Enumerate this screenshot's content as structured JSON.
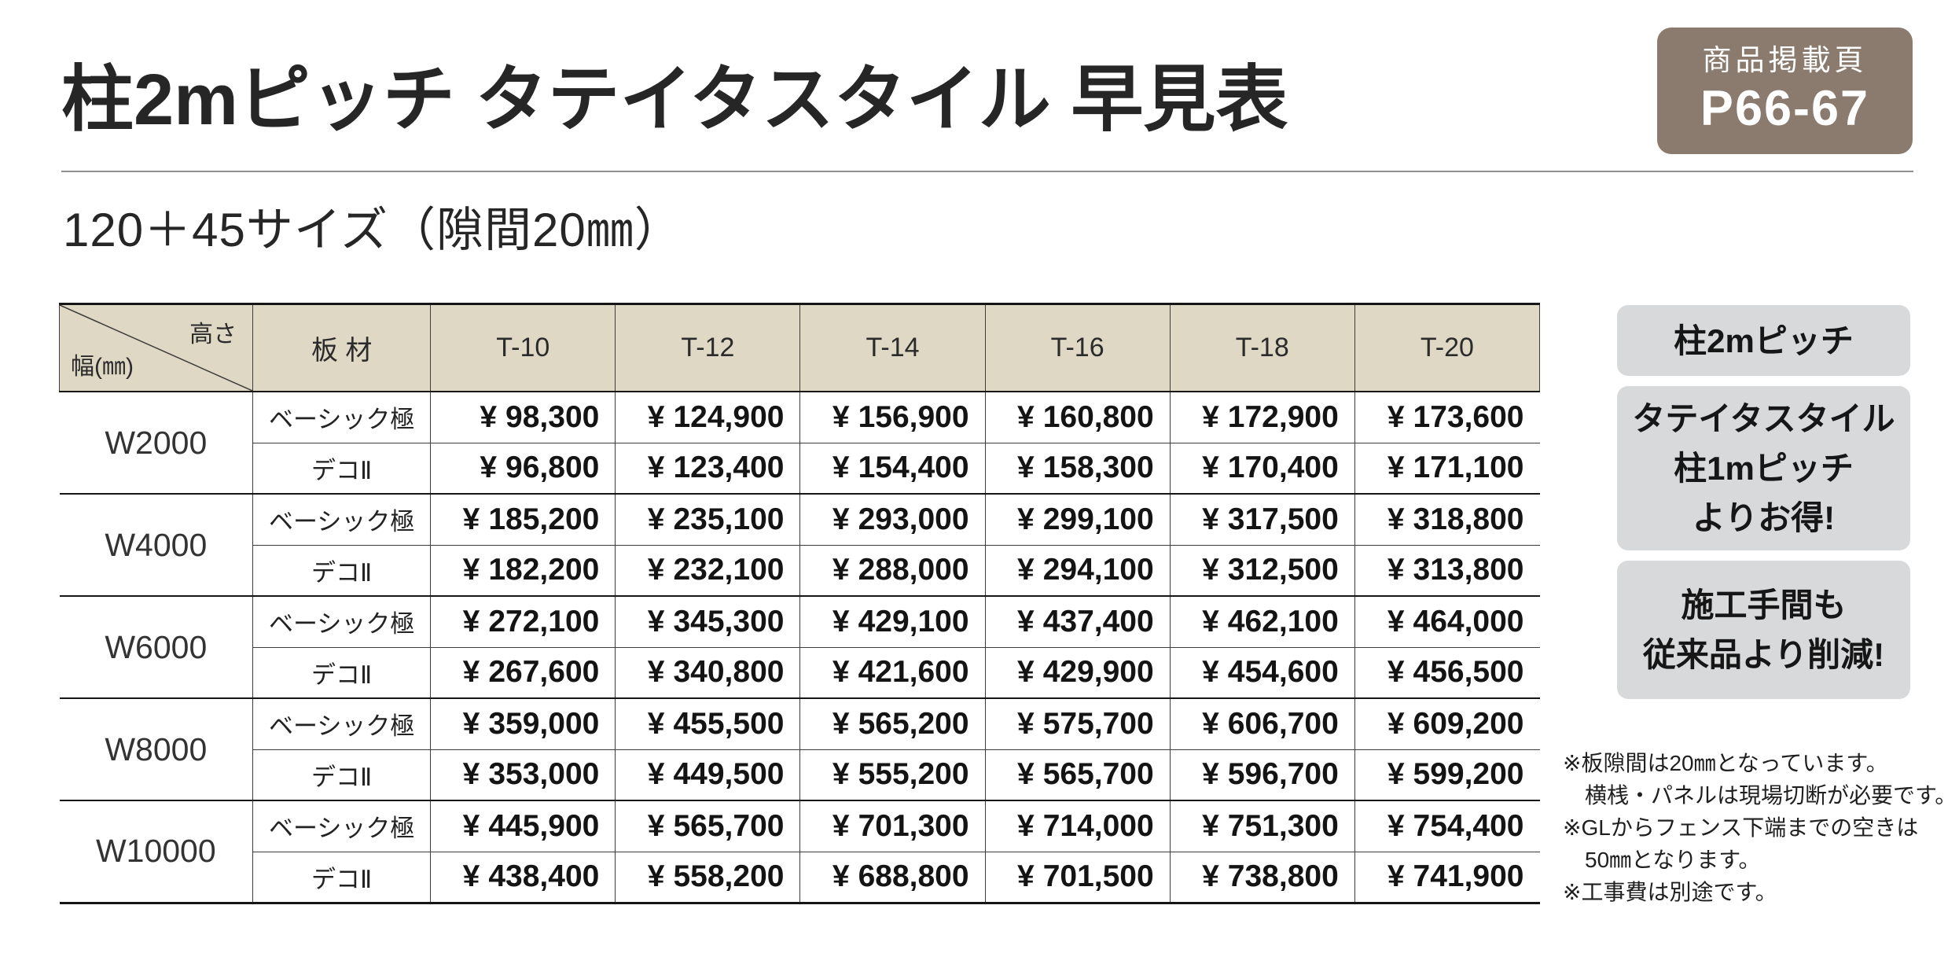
{
  "page": {
    "title": "柱2mピッチ タテイタスタイル 早見表",
    "subtitle": "120＋45サイズ（隙間20㎜）"
  },
  "page_badge": {
    "label": "商品掲載頁",
    "pages": "P66-67"
  },
  "table": {
    "corner": {
      "height_label": "高さ",
      "width_label": "幅(㎜)"
    },
    "material_header": "板 材",
    "height_columns": [
      "T-10",
      "T-12",
      "T-14",
      "T-16",
      "T-18",
      "T-20"
    ],
    "currency_symbol": "¥",
    "groups": [
      {
        "width": "W2000",
        "rows": [
          {
            "material": "ベーシック極",
            "amounts": [
              "98,300",
              "124,900",
              "156,900",
              "160,800",
              "172,900",
              "173,600"
            ]
          },
          {
            "material": "デコⅡ",
            "amounts": [
              "96,800",
              "123,400",
              "154,400",
              "158,300",
              "170,400",
              "171,100"
            ]
          }
        ]
      },
      {
        "width": "W4000",
        "rows": [
          {
            "material": "ベーシック極",
            "amounts": [
              "185,200",
              "235,100",
              "293,000",
              "299,100",
              "317,500",
              "318,800"
            ]
          },
          {
            "material": "デコⅡ",
            "amounts": [
              "182,200",
              "232,100",
              "288,000",
              "294,100",
              "312,500",
              "313,800"
            ]
          }
        ]
      },
      {
        "width": "W6000",
        "rows": [
          {
            "material": "ベーシック極",
            "amounts": [
              "272,100",
              "345,300",
              "429,100",
              "437,400",
              "462,100",
              "464,000"
            ]
          },
          {
            "material": "デコⅡ",
            "amounts": [
              "267,600",
              "340,800",
              "421,600",
              "429,900",
              "454,600",
              "456,500"
            ]
          }
        ]
      },
      {
        "width": "W8000",
        "rows": [
          {
            "material": "ベーシック極",
            "amounts": [
              "359,000",
              "455,500",
              "565,200",
              "575,700",
              "606,700",
              "609,200"
            ]
          },
          {
            "material": "デコⅡ",
            "amounts": [
              "353,000",
              "449,500",
              "555,200",
              "565,700",
              "596,700",
              "599,200"
            ]
          }
        ]
      },
      {
        "width": "W10000",
        "rows": [
          {
            "material": "ベーシック極",
            "amounts": [
              "445,900",
              "565,700",
              "701,300",
              "714,000",
              "751,300",
              "754,400"
            ]
          },
          {
            "material": "デコⅡ",
            "amounts": [
              "438,400",
              "558,200",
              "688,800",
              "701,500",
              "738,800",
              "741,900"
            ]
          }
        ]
      }
    ]
  },
  "side_badges": [
    {
      "lines": [
        "柱2mピッチ"
      ]
    },
    {
      "lines": [
        "タテイタスタイル",
        "柱1mピッチ",
        "よりお得!"
      ]
    },
    {
      "lines": [
        "施工手間も",
        "従来品より削減!"
      ]
    }
  ],
  "notes": [
    {
      "text": "※板隙間は20㎜となっています。",
      "indent": false
    },
    {
      "text": "横桟・パネルは現場切断が必要です。",
      "indent": true
    },
    {
      "text": "※GLからフェンス下端までの空きは",
      "indent": false
    },
    {
      "text": "50㎜となります。",
      "indent": true
    },
    {
      "text": "※工事費は別途です。",
      "indent": false
    }
  ],
  "colors": {
    "accent_brown": "#8a7b6e",
    "header_beige": "#ded8c4",
    "side_badge_gray": "#d8d9db"
  }
}
